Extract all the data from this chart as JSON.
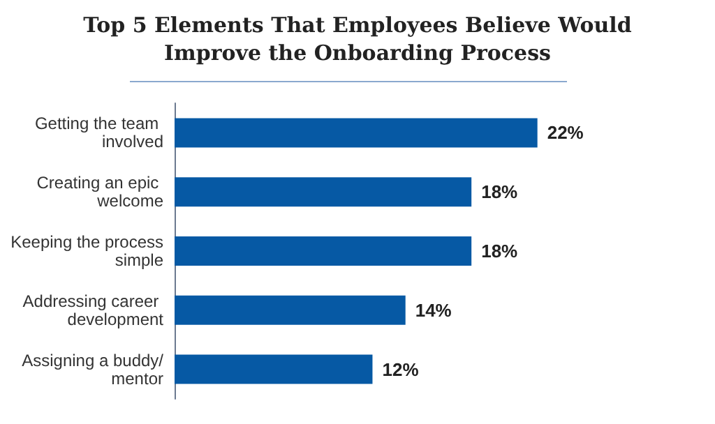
{
  "chart_data": {
    "type": "bar",
    "orientation": "horizontal",
    "title": "Top 5 Elements That Employees Believe Would Improve the Onboarding Process",
    "categories": [
      "Getting the team involved",
      "Creating an epic welcome",
      "Keeping the process simple",
      "Addressing career development",
      "Assigning a buddy/mentor"
    ],
    "values": [
      22,
      18,
      18,
      14,
      12
    ],
    "value_labels": [
      "22%",
      "18%",
      "18%",
      "14%",
      "12%"
    ],
    "color": "#0659a4",
    "grid": false
  }
}
